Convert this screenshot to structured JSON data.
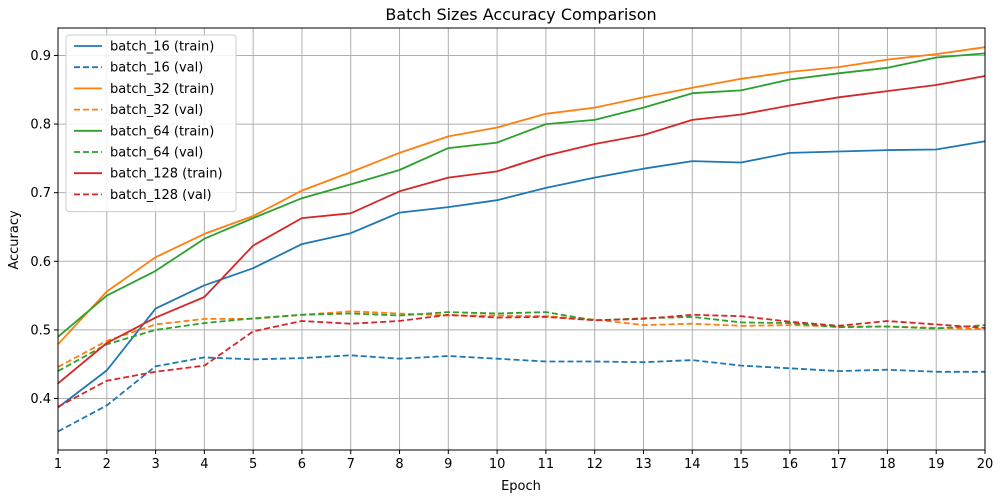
{
  "chart_data": {
    "type": "line",
    "title": "Batch Sizes Accuracy Comparison",
    "xlabel": "Epoch",
    "ylabel": "Accuracy",
    "xlim": [
      1,
      20
    ],
    "ylim": [
      0.325,
      0.94
    ],
    "xticks": [
      "1",
      "2",
      "3",
      "4",
      "5",
      "6",
      "7",
      "8",
      "9",
      "10",
      "11",
      "12",
      "13",
      "14",
      "15",
      "16",
      "17",
      "18",
      "19",
      "20"
    ],
    "yticks": [
      "0.4",
      "0.5",
      "0.6",
      "0.7",
      "0.8",
      "0.9"
    ],
    "grid": true,
    "legend_position": "top-left",
    "x": [
      1,
      2,
      3,
      4,
      5,
      6,
      7,
      8,
      9,
      10,
      11,
      12,
      13,
      14,
      15,
      16,
      17,
      18,
      19,
      20
    ],
    "series": [
      {
        "name": "batch_16 (train)",
        "color": "#1f77b4",
        "style": "solid",
        "values": [
          0.387,
          0.441,
          0.531,
          0.565,
          0.59,
          0.625,
          0.641,
          0.671,
          0.679,
          0.689,
          0.707,
          0.722,
          0.735,
          0.746,
          0.744,
          0.758,
          0.76,
          0.762,
          0.763,
          0.775
        ]
      },
      {
        "name": "batch_16 (val)",
        "color": "#1f77b4",
        "style": "dashed",
        "values": [
          0.352,
          0.39,
          0.447,
          0.46,
          0.457,
          0.459,
          0.463,
          0.458,
          0.462,
          0.458,
          0.454,
          0.454,
          0.453,
          0.456,
          0.448,
          0.444,
          0.44,
          0.442,
          0.439,
          0.439
        ]
      },
      {
        "name": "batch_32 (train)",
        "color": "#ff7f0e",
        "style": "solid",
        "values": [
          0.479,
          0.556,
          0.606,
          0.64,
          0.666,
          0.703,
          0.73,
          0.758,
          0.782,
          0.795,
          0.815,
          0.824,
          0.839,
          0.853,
          0.866,
          0.876,
          0.883,
          0.894,
          0.902,
          0.912
        ]
      },
      {
        "name": "batch_32 (val)",
        "color": "#ff7f0e",
        "style": "dashed",
        "values": [
          0.446,
          0.484,
          0.508,
          0.516,
          0.516,
          0.522,
          0.527,
          0.524,
          0.521,
          0.521,
          0.52,
          0.515,
          0.507,
          0.509,
          0.506,
          0.507,
          0.505,
          0.505,
          0.503,
          0.501
        ]
      },
      {
        "name": "batch_64 (train)",
        "color": "#2ca02c",
        "style": "solid",
        "values": [
          0.49,
          0.55,
          0.586,
          0.633,
          0.663,
          0.692,
          0.712,
          0.733,
          0.765,
          0.773,
          0.8,
          0.806,
          0.824,
          0.845,
          0.849,
          0.865,
          0.874,
          0.882,
          0.897,
          0.903
        ]
      },
      {
        "name": "batch_64 (val)",
        "color": "#2ca02c",
        "style": "dashed",
        "values": [
          0.44,
          0.479,
          0.5,
          0.51,
          0.517,
          0.522,
          0.524,
          0.521,
          0.526,
          0.524,
          0.526,
          0.514,
          0.517,
          0.519,
          0.511,
          0.51,
          0.504,
          0.505,
          0.502,
          0.507
        ]
      },
      {
        "name": "batch_128 (train)",
        "color": "#d62728",
        "style": "solid",
        "values": [
          0.422,
          0.481,
          0.518,
          0.548,
          0.623,
          0.663,
          0.67,
          0.702,
          0.722,
          0.731,
          0.754,
          0.771,
          0.784,
          0.806,
          0.814,
          0.827,
          0.839,
          0.848,
          0.857,
          0.87
        ]
      },
      {
        "name": "batch_128 (val)",
        "color": "#d62728",
        "style": "dashed",
        "values": [
          0.388,
          0.426,
          0.439,
          0.448,
          0.498,
          0.513,
          0.509,
          0.513,
          0.522,
          0.518,
          0.519,
          0.514,
          0.516,
          0.522,
          0.52,
          0.512,
          0.506,
          0.513,
          0.508,
          0.503
        ]
      }
    ]
  }
}
